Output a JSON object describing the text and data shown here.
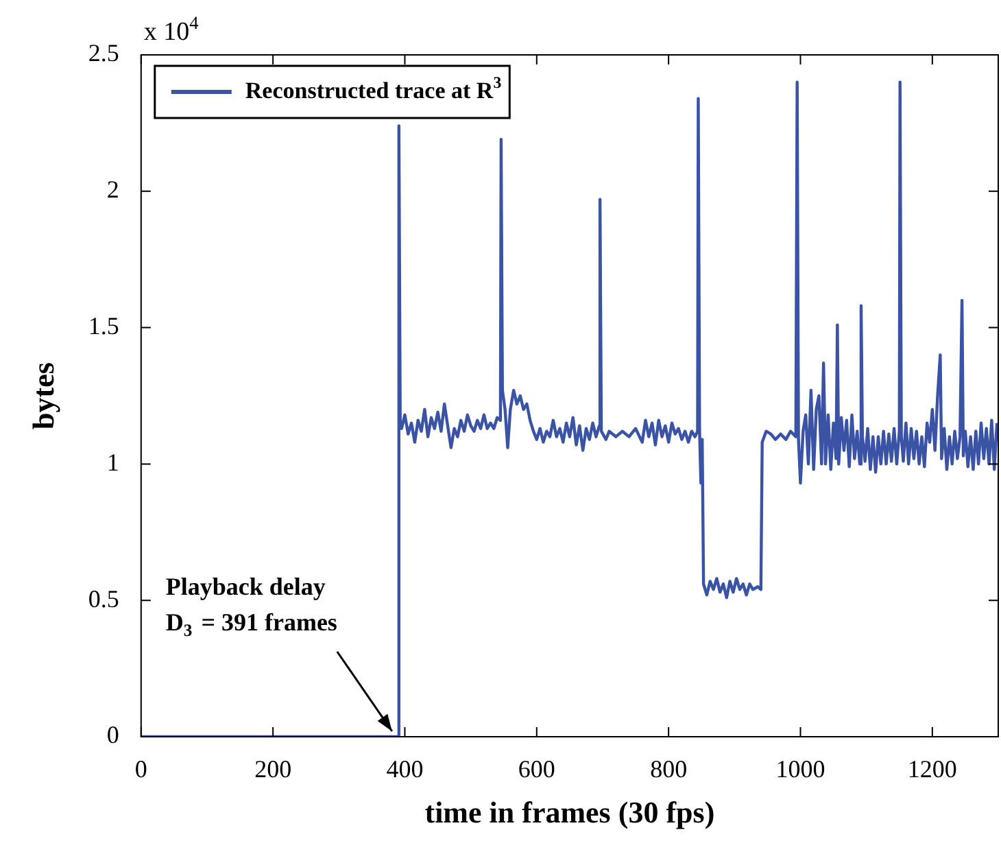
{
  "chart_data": {
    "type": "line",
    "xlabel": "time in frames (30 fps)",
    "ylabel": "bytes",
    "legend": "top left",
    "xlim": [
      0,
      1300
    ],
    "xticks": [
      0,
      200,
      400,
      600,
      800,
      1000,
      1200
    ],
    "ylim": [
      0,
      2.5
    ],
    "yticks": [
      0,
      0.5,
      1,
      1.5,
      2,
      2.5
    ],
    "marker": "none",
    "annotations": [
      "x 10$^{4}$",
      {
        "text": "Playback delay\nD$_{3}$ = 391 frames",
        "x": 391,
        "y": 0
      }
    ],
    "series": [
      {
        "name": "Reconstructed trace at R$^{3}$",
        "color": "#3a53a4",
        "x": [
          0,
          390,
          391,
          393,
          395,
          400,
          405,
          410,
          415,
          420,
          425,
          430,
          435,
          440,
          445,
          450,
          455,
          460,
          465,
          470,
          475,
          480,
          485,
          490,
          495,
          500,
          505,
          510,
          515,
          520,
          525,
          530,
          535,
          540,
          545,
          546,
          548,
          552,
          556,
          560,
          565,
          570,
          575,
          580,
          585,
          590,
          595,
          600,
          605,
          610,
          615,
          620,
          625,
          630,
          635,
          640,
          645,
          650,
          655,
          660,
          665,
          670,
          675,
          680,
          685,
          690,
          695,
          696,
          698,
          705,
          710,
          720,
          730,
          740,
          750,
          760,
          765,
          770,
          775,
          780,
          785,
          790,
          795,
          800,
          805,
          810,
          815,
          820,
          825,
          830,
          835,
          840,
          844,
          845,
          847,
          849,
          851,
          853,
          858,
          863,
          868,
          873,
          878,
          883,
          888,
          893,
          898,
          903,
          908,
          913,
          918,
          923,
          928,
          935,
          940,
          942,
          948,
          955,
          962,
          970,
          978,
          985,
          993,
          995,
          997,
          1000,
          1004,
          1008,
          1012,
          1016,
          1020,
          1024,
          1028,
          1032,
          1035,
          1038,
          1042,
          1046,
          1050,
          1054,
          1056,
          1058,
          1062,
          1066,
          1070,
          1074,
          1078,
          1082,
          1086,
          1090,
          1092,
          1094,
          1098,
          1102,
          1106,
          1110,
          1114,
          1118,
          1122,
          1126,
          1130,
          1134,
          1138,
          1142,
          1146,
          1150,
          1151,
          1153,
          1156,
          1160,
          1164,
          1168,
          1172,
          1176,
          1180,
          1184,
          1188,
          1192,
          1196,
          1200,
          1204,
          1208,
          1212,
          1214,
          1218,
          1222,
          1226,
          1230,
          1234,
          1238,
          1242,
          1245,
          1247,
          1250,
          1254,
          1258,
          1262,
          1266,
          1270,
          1274,
          1278,
          1282,
          1286,
          1290,
          1294,
          1298
        ],
        "values": [
          0,
          0,
          2.24,
          1.15,
          1.13,
          1.18,
          1.11,
          1.15,
          1.08,
          1.16,
          1.12,
          1.2,
          1.1,
          1.17,
          1.13,
          1.19,
          1.12,
          1.22,
          1.14,
          1.06,
          1.13,
          1.1,
          1.16,
          1.12,
          1.18,
          1.14,
          1.12,
          1.16,
          1.13,
          1.18,
          1.13,
          1.15,
          1.13,
          1.17,
          1.16,
          2.19,
          1.27,
          1.2,
          1.06,
          1.2,
          1.27,
          1.22,
          1.25,
          1.2,
          1.22,
          1.16,
          1.12,
          1.09,
          1.13,
          1.08,
          1.12,
          1.1,
          1.16,
          1.1,
          1.13,
          1.08,
          1.15,
          1.1,
          1.17,
          1.07,
          1.14,
          1.05,
          1.13,
          1.09,
          1.15,
          1.1,
          1.14,
          1.97,
          1.12,
          1.09,
          1.12,
          1.1,
          1.12,
          1.1,
          1.13,
          1.08,
          1.16,
          1.1,
          1.15,
          1.07,
          1.16,
          1.1,
          1.14,
          1.08,
          1.15,
          1.11,
          1.13,
          1.09,
          1.12,
          1.08,
          1.12,
          1.1,
          1.12,
          2.34,
          1.12,
          0.93,
          1.09,
          0.56,
          0.52,
          0.57,
          0.54,
          0.58,
          0.53,
          0.56,
          0.51,
          0.57,
          0.53,
          0.58,
          0.54,
          0.56,
          0.52,
          0.56,
          0.54,
          0.55,
          0.54,
          1.08,
          1.12,
          1.11,
          1.09,
          1.11,
          1.09,
          1.12,
          1.1,
          2.4,
          1.09,
          0.93,
          1.12,
          1.18,
          1.0,
          1.27,
          0.98,
          1.2,
          1.25,
          1.0,
          1.37,
          1.0,
          1.18,
          0.98,
          1.15,
          1.02,
          1.51,
          1.0,
          1.17,
          1.05,
          1.16,
          0.99,
          1.18,
          1.02,
          1.12,
          1.0,
          1.58,
          1.1,
          1.01,
          1.13,
          0.98,
          1.1,
          0.97,
          1.1,
          1.0,
          1.12,
          1.0,
          1.11,
          1.01,
          1.13,
          1.0,
          1.12,
          2.4,
          1.1,
          1.01,
          1.15,
          1.0,
          1.13,
          1.02,
          1.12,
          1.0,
          1.1,
          0.99,
          1.15,
          1.08,
          1.2,
          1.05,
          1.25,
          1.4,
          1.02,
          1.13,
          0.98,
          1.1,
          1.0,
          1.12,
          1.02,
          1.1,
          1.6,
          1.03,
          1.12,
          0.99,
          1.1,
          0.98,
          1.12,
          1.0,
          1.15,
          1.02,
          1.13,
          1.0,
          1.16,
          0.98,
          1.15
        ]
      }
    ]
  }
}
